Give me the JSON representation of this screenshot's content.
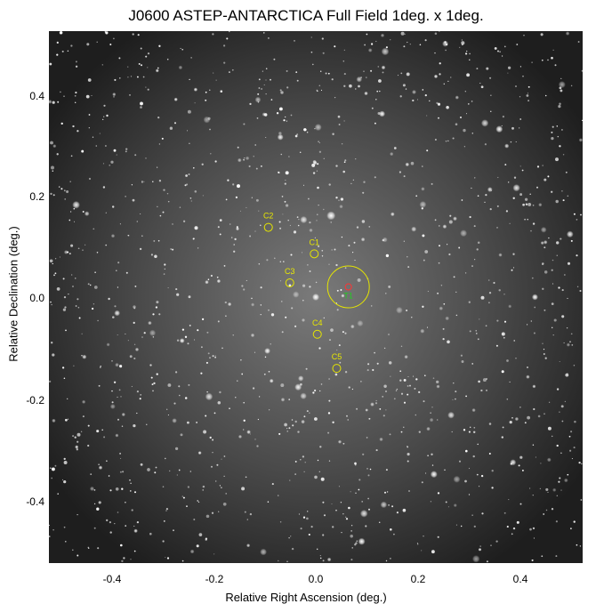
{
  "title": "J0600  ASTEP-ANTARCTICA Full Field 1deg. x 1deg.",
  "axes": {
    "xlabel": "Relative Right Ascension (deg.)",
    "ylabel": "Relative Declination (deg.)",
    "xticks": [
      "-0.4",
      "-0.2",
      "0.0",
      "0.2",
      "0.4"
    ],
    "yticks": [
      "0.4",
      "0.2",
      "0.0",
      "-0.2",
      "-0.4"
    ]
  },
  "annotations": {
    "candidates": [
      {
        "label": "C1",
        "ra": -0.003,
        "dec": 0.085
      },
      {
        "label": "C2",
        "ra": -0.093,
        "dec": 0.137
      },
      {
        "label": "C3",
        "ra": -0.051,
        "dec": 0.028
      },
      {
        "label": "C4",
        "ra": 0.003,
        "dec": -0.073
      },
      {
        "label": "C5",
        "ra": 0.041,
        "dec": -0.14
      }
    ],
    "target": {
      "label": "T1",
      "ra": 0.064,
      "dec": 0.02,
      "radius_deg": 0.041
    },
    "candidate_color": "#e6e600",
    "target_color": "#22cc22",
    "target_marker_color": "#ff3333"
  },
  "colors": {
    "sky_dark": "#1c1c1c",
    "sky_center": "#7a7a7a",
    "star": "#ffffff"
  }
}
